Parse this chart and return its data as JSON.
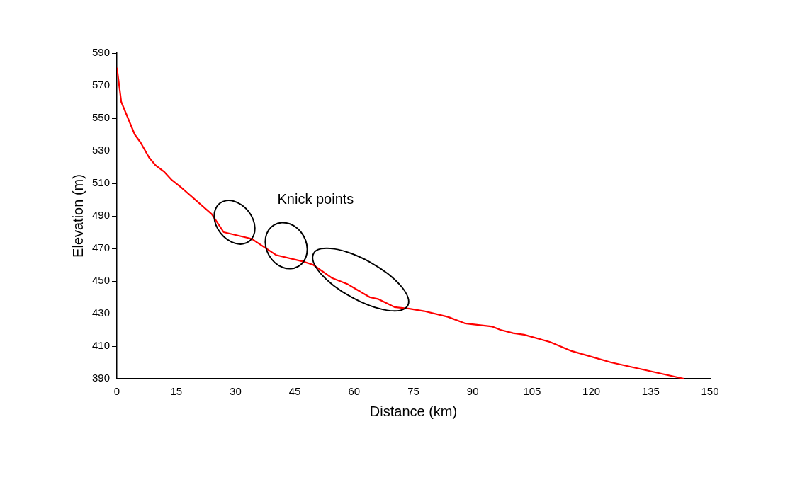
{
  "chart_data": {
    "type": "line",
    "xlabel": "Distance (km)",
    "ylabel": "Elevation (m)",
    "x": [
      0,
      1.1,
      4.5,
      6,
      8.1,
      9.8,
      12,
      13.9,
      16,
      24,
      27,
      34,
      40.2,
      47,
      49.6,
      54.3,
      58.4,
      64,
      66,
      70.2,
      74,
      77.7,
      83.7,
      88,
      95,
      97,
      100.2,
      103,
      109.6,
      115,
      125,
      143.4
    ],
    "series": [
      {
        "color": "#ff0000",
        "values": [
          581,
          560,
          540,
          535,
          526,
          521,
          517,
          512,
          508,
          491,
          480,
          476,
          466,
          462,
          460,
          452,
          448,
          440,
          439,
          434,
          433,
          431.5,
          428,
          424,
          422,
          420,
          418,
          417,
          412.5,
          407,
          400,
          390
        ]
      }
    ],
    "xlim": [
      0,
      150
    ],
    "xticks": [
      0,
      15,
      30,
      45,
      60,
      75,
      90,
      105,
      120,
      135,
      150
    ],
    "ylim": [
      390,
      590
    ],
    "yticks": [
      390,
      410,
      430,
      450,
      470,
      490,
      510,
      530,
      550,
      570,
      590
    ],
    "grid": false,
    "legend": false,
    "marker": "none",
    "line_style": "solid",
    "annotations": [
      "Knick points"
    ]
  }
}
